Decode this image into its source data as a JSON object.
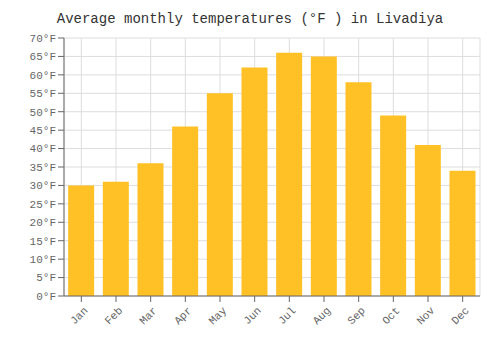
{
  "chart_data": {
    "type": "bar",
    "title": "Average monthly temperatures (°F ) in Livadiya",
    "categories": [
      "Jan",
      "Feb",
      "Mar",
      "Apr",
      "May",
      "Jun",
      "Jul",
      "Aug",
      "Sep",
      "Oct",
      "Nov",
      "Dec"
    ],
    "values": [
      30,
      31,
      36,
      46,
      55,
      62,
      66,
      65,
      58,
      49,
      41,
      34
    ],
    "color": "#FFC125",
    "ylim": [
      0,
      70
    ],
    "yticks": [
      {
        "value": 0,
        "label": "0°F"
      },
      {
        "value": 5,
        "label": "5°F"
      },
      {
        "value": 10,
        "label": "10°F"
      },
      {
        "value": 15,
        "label": "15°F"
      },
      {
        "value": 20,
        "label": "20°F"
      },
      {
        "value": 25,
        "label": "25°F"
      },
      {
        "value": 30,
        "label": "30°F"
      },
      {
        "value": 35,
        "label": "35°F"
      },
      {
        "value": 40,
        "label": "40°F"
      },
      {
        "value": 45,
        "label": "45°F"
      },
      {
        "value": 50,
        "label": "50°F"
      },
      {
        "value": 55,
        "label": "55°F"
      },
      {
        "value": 60,
        "label": "60°F"
      },
      {
        "value": 65,
        "label": "65°F"
      },
      {
        "value": 70,
        "label": "70°F"
      }
    ],
    "grid": true
  }
}
